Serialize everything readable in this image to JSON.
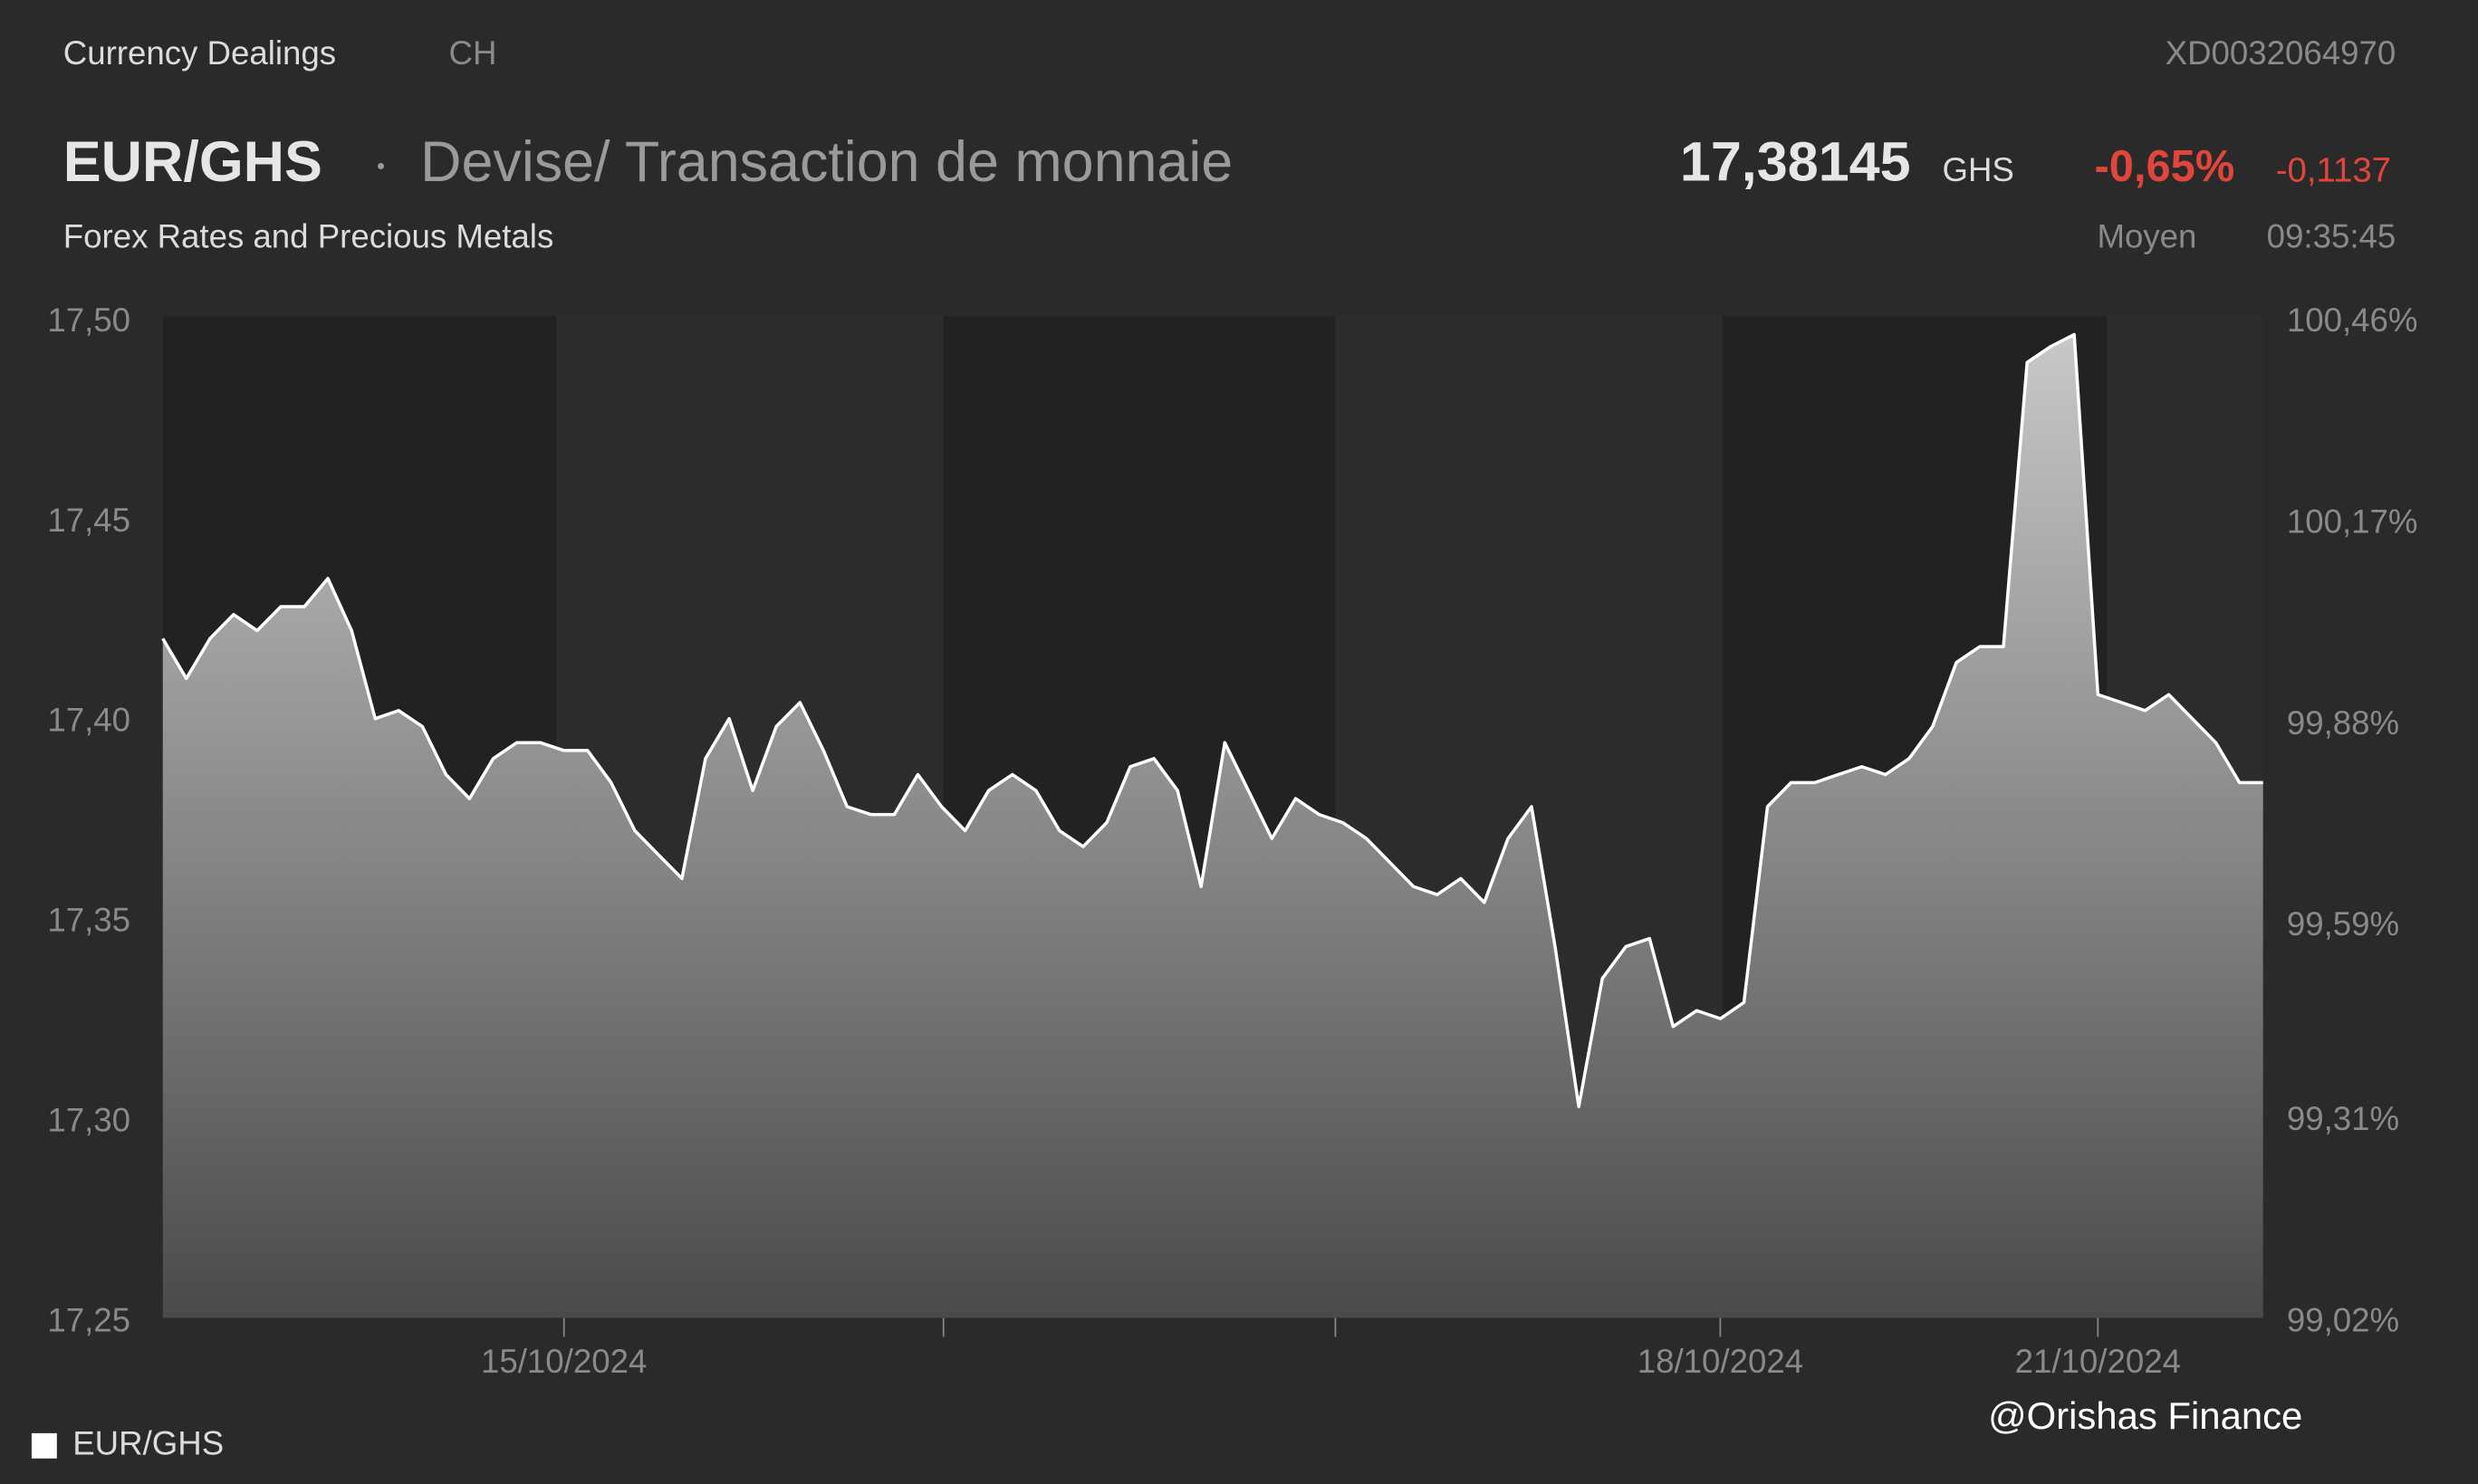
{
  "header": {
    "source": "Currency Dealings",
    "country": "CH",
    "isin": "XD0032064970",
    "symbol": "EUR/GHS",
    "description": "Devise/ Transaction de monnaie",
    "subtitle": "Forex Rates and Precious Metals",
    "price": "17,38145",
    "currency": "GHS",
    "change_pct": "-0,65%",
    "change_abs": "-0,1137",
    "price_type": "Moyen",
    "time": "09:35:45"
  },
  "watermark": "@Orishas Finance",
  "chart_data": {
    "type": "line",
    "categories": [
      null,
      null,
      null,
      null,
      null,
      null,
      null,
      null,
      null,
      null,
      null,
      null,
      null,
      null,
      null,
      null,
      null,
      "15/10/2024",
      null,
      null,
      null,
      null,
      null,
      null,
      null,
      null,
      null,
      null,
      null,
      null,
      null,
      null,
      null,
      null,
      null,
      null,
      null,
      null,
      null,
      null,
      null,
      null,
      null,
      null,
      null,
      null,
      null,
      null,
      null,
      null,
      null,
      null,
      null,
      null,
      null,
      null,
      null,
      null,
      null,
      null,
      null,
      null,
      null,
      null,
      null,
      null,
      "18/10/2024",
      null,
      null,
      null,
      null,
      null,
      null,
      null,
      null,
      null,
      null,
      null,
      null,
      null,
      null,
      null,
      "21/10/2024",
      null,
      null,
      null,
      null,
      null,
      null,
      null
    ],
    "series": [
      {
        "name": "EUR/GHS",
        "color": "#ffffff",
        "values": [
          17.421,
          17.411,
          17.421,
          17.427,
          17.423,
          17.429,
          17.429,
          17.436,
          17.423,
          17.401,
          17.403,
          17.399,
          17.387,
          17.381,
          17.391,
          17.395,
          17.395,
          17.393,
          17.393,
          17.385,
          17.373,
          17.367,
          17.361,
          17.391,
          17.401,
          17.383,
          17.399,
          17.405,
          17.393,
          17.379,
          17.377,
          17.377,
          17.387,
          17.379,
          17.373,
          17.383,
          17.387,
          17.383,
          17.373,
          17.369,
          17.375,
          17.389,
          17.391,
          17.383,
          17.359,
          17.395,
          17.383,
          17.371,
          17.381,
          17.377,
          17.375,
          17.371,
          17.365,
          17.359,
          17.357,
          17.361,
          17.355,
          17.371,
          17.379,
          17.344,
          17.304,
          17.336,
          17.344,
          17.346,
          17.324,
          17.328,
          17.326,
          17.33,
          17.379,
          17.385,
          17.385,
          17.387,
          17.389,
          17.387,
          17.391,
          17.399,
          17.415,
          17.419,
          17.419,
          17.49,
          17.494,
          17.497,
          17.407,
          17.405,
          17.403,
          17.407,
          17.401,
          17.395,
          17.385,
          17.385
        ]
      }
    ],
    "ylim": [
      17.25,
      17.5
    ],
    "yticks": [
      {
        "value": 17.25,
        "label": "17,25"
      },
      {
        "value": 17.3,
        "label": "17,30"
      },
      {
        "value": 17.35,
        "label": "17,35"
      },
      {
        "value": 17.4,
        "label": "17,40"
      },
      {
        "value": 17.45,
        "label": "17,45"
      },
      {
        "value": 17.5,
        "label": "17,50"
      }
    ],
    "y2lim": [
      99.02,
      100.46
    ],
    "y2ticks": [
      {
        "value": 99.02,
        "label": "99,02%"
      },
      {
        "value": 99.31,
        "label": "99,31%"
      },
      {
        "value": 99.59,
        "label": "99,59%"
      },
      {
        "value": 99.88,
        "label": "99,88%"
      },
      {
        "value": 100.17,
        "label": "100,17%"
      },
      {
        "value": 100.46,
        "label": "100,46%"
      }
    ],
    "legend": "bottom-left"
  }
}
